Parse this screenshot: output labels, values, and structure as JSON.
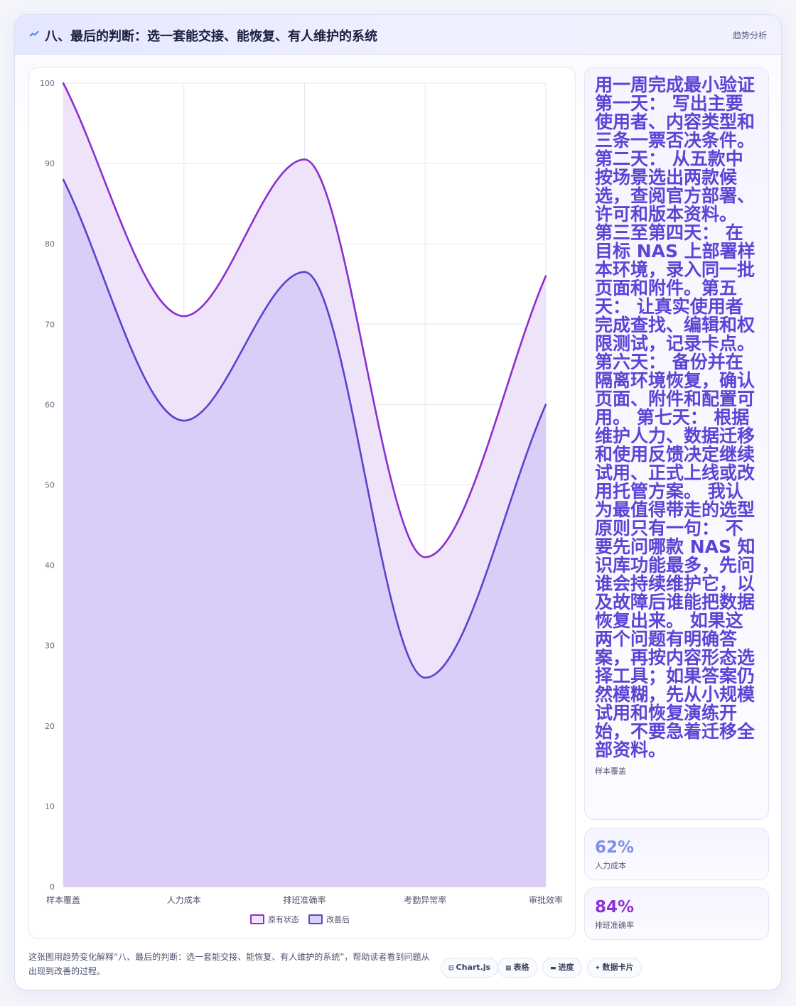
{
  "header": {
    "icon": "trend-line-icon",
    "title": "八、最后的判断：选一套能交接、能恢复、有人维护的系统",
    "tag": "趋势分析"
  },
  "chart_data": {
    "type": "area",
    "categories": [
      "样本覆盖",
      "人力成本",
      "排班准确率",
      "考勤异常率",
      "审批效率"
    ],
    "series": [
      {
        "name": "原有状态",
        "values": [
          100,
          71,
          90.5,
          41,
          76
        ],
        "color": "#8b2fd0",
        "fill": "#efe3fa"
      },
      {
        "name": "改善后",
        "values": [
          88,
          58,
          76.5,
          26,
          60
        ],
        "color": "#5a43cc",
        "fill": "#dacdf8"
      }
    ],
    "yticks": [
      0,
      10,
      20,
      30,
      40,
      50,
      60,
      70,
      80,
      90,
      100
    ],
    "ylim": [
      0,
      100
    ],
    "grid": true,
    "legend_position": "bottom"
  },
  "side": {
    "big_text": "用一周完成最小验证 第一天： 写出主要使用者、内容类型和三条一票否决条件。 第二天： 从五款中按场景选出两款候选，查阅官方部署、许可和版本资料。 第三至第四天： 在目标 NAS 上部署样本环境，录入同一批页面和附件。第五天： 让真实使用者完成查找、编辑和权限测试，记录卡点。 第六天： 备份并在隔离环境恢复，确认页面、附件和配置可用。 第七天： 根据维护人力、数据迁移和使用反馈决定继续试用、正式上线或改用托管方案。 我认为最值得带走的选型原则只有一句： 不要先问哪款 NAS 知识库功能最多，先问谁会持续维护它，以及故障后谁能把数据恢复出来。 如果这两个问题有明确答案，再按内容形态选择工具；如果答案仍然模糊，先从小规模试用和恢复演练开始，不要急着迁移全部资料。",
    "big_label": "样本覆盖",
    "stat1_value": "62%",
    "stat1_label": "人力成本",
    "stat2_value": "84%",
    "stat2_label": "排班准确率"
  },
  "footer": {
    "note": "这张图用趋势变化解释“八、最后的判断：选一套能交接、能恢复、有人维护的系统”，帮助读者看到问题从出现到改善的过程。",
    "pills": [
      {
        "icon": "table-icon",
        "label": "Chart.js"
      },
      {
        "icon": "grid-icon",
        "label": "表格"
      },
      {
        "icon": "progress-icon",
        "label": "进度"
      },
      {
        "icon": "sparkle-icon",
        "label": "数据卡片"
      }
    ]
  }
}
